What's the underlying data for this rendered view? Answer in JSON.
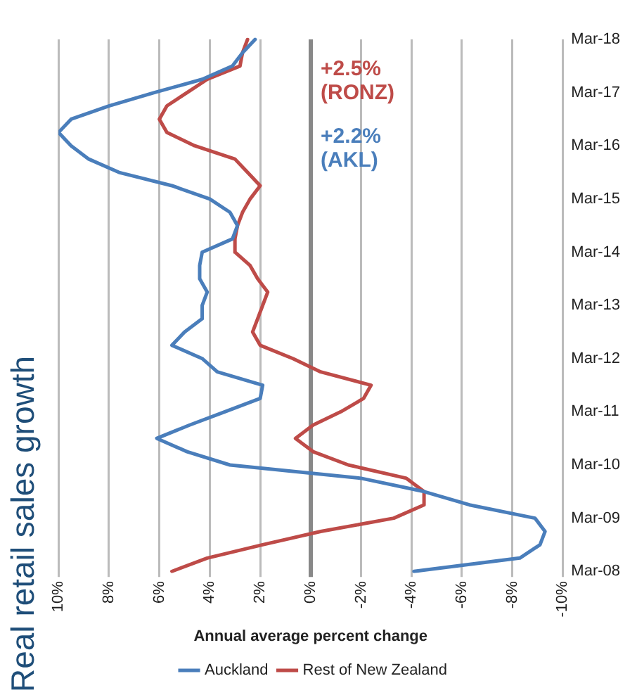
{
  "chart_data": {
    "type": "line",
    "orientation": "horizontal",
    "title": "Real retail sales growth",
    "xlabel": "Annual average percent change",
    "categories": [
      "Mar-18",
      null,
      null,
      null,
      "Mar-17",
      null,
      null,
      null,
      "Mar-16",
      null,
      null,
      null,
      "Mar-15",
      null,
      null,
      null,
      "Mar-14",
      null,
      null,
      null,
      "Mar-13",
      null,
      null,
      null,
      "Mar-12",
      null,
      null,
      null,
      "Mar-11",
      null,
      null,
      null,
      "Mar-10",
      null,
      null,
      null,
      "Mar-09",
      null,
      null,
      null,
      "Mar-08"
    ],
    "series": [
      {
        "name": "Auckland",
        "color": "#4a7ebb",
        "values": [
          2.2,
          2.7,
          3.1,
          4.3,
          6.2,
          8.0,
          9.5,
          10.0,
          9.5,
          8.8,
          7.6,
          5.5,
          4.0,
          3.2,
          2.9,
          3.1,
          4.3,
          4.4,
          4.4,
          4.1,
          4.3,
          4.3,
          5.0,
          5.5,
          4.3,
          3.7,
          1.9,
          2.0,
          3.4,
          4.8,
          6.1,
          4.9,
          3.2,
          -2.0,
          -4.5,
          -6.3,
          -8.9,
          -9.3,
          -9.1,
          -8.3,
          -4.1
        ]
      },
      {
        "name": "Rest of New Zealand",
        "color": "#be4b48",
        "values": [
          2.5,
          2.7,
          2.8,
          4.1,
          4.9,
          5.7,
          6.0,
          5.7,
          4.6,
          3.0,
          2.5,
          2.0,
          2.4,
          2.7,
          2.9,
          3.0,
          3.0,
          2.4,
          2.1,
          1.7,
          1.9,
          2.1,
          2.3,
          2.0,
          0.7,
          -0.4,
          -2.4,
          -2.1,
          -1.2,
          -0.1,
          0.6,
          -0.1,
          -1.5,
          -3.8,
          -4.5,
          -4.5,
          -3.3,
          -0.4,
          1.9,
          4.1,
          5.5
        ]
      }
    ],
    "xlim": [
      10,
      -10
    ],
    "xticks": [
      {
        "value": 10,
        "label": "10%"
      },
      {
        "value": 8,
        "label": "8%"
      },
      {
        "value": 6,
        "label": "6%"
      },
      {
        "value": 4,
        "label": "4%"
      },
      {
        "value": 2,
        "label": "2%"
      },
      {
        "value": 0,
        "label": "0%"
      },
      {
        "value": -2,
        "label": "-2%"
      },
      {
        "value": -4,
        "label": "-4%"
      },
      {
        "value": -6,
        "label": "-6%"
      },
      {
        "value": -8,
        "label": "-8%"
      },
      {
        "value": -10,
        "label": "-10%"
      }
    ],
    "annotations": [
      "+2.2%\n(AKL)",
      "+2.5%\n(RONZ)"
    ],
    "grid": "x",
    "legend": "bottom",
    "marker": "none",
    "line_style": "solid"
  }
}
